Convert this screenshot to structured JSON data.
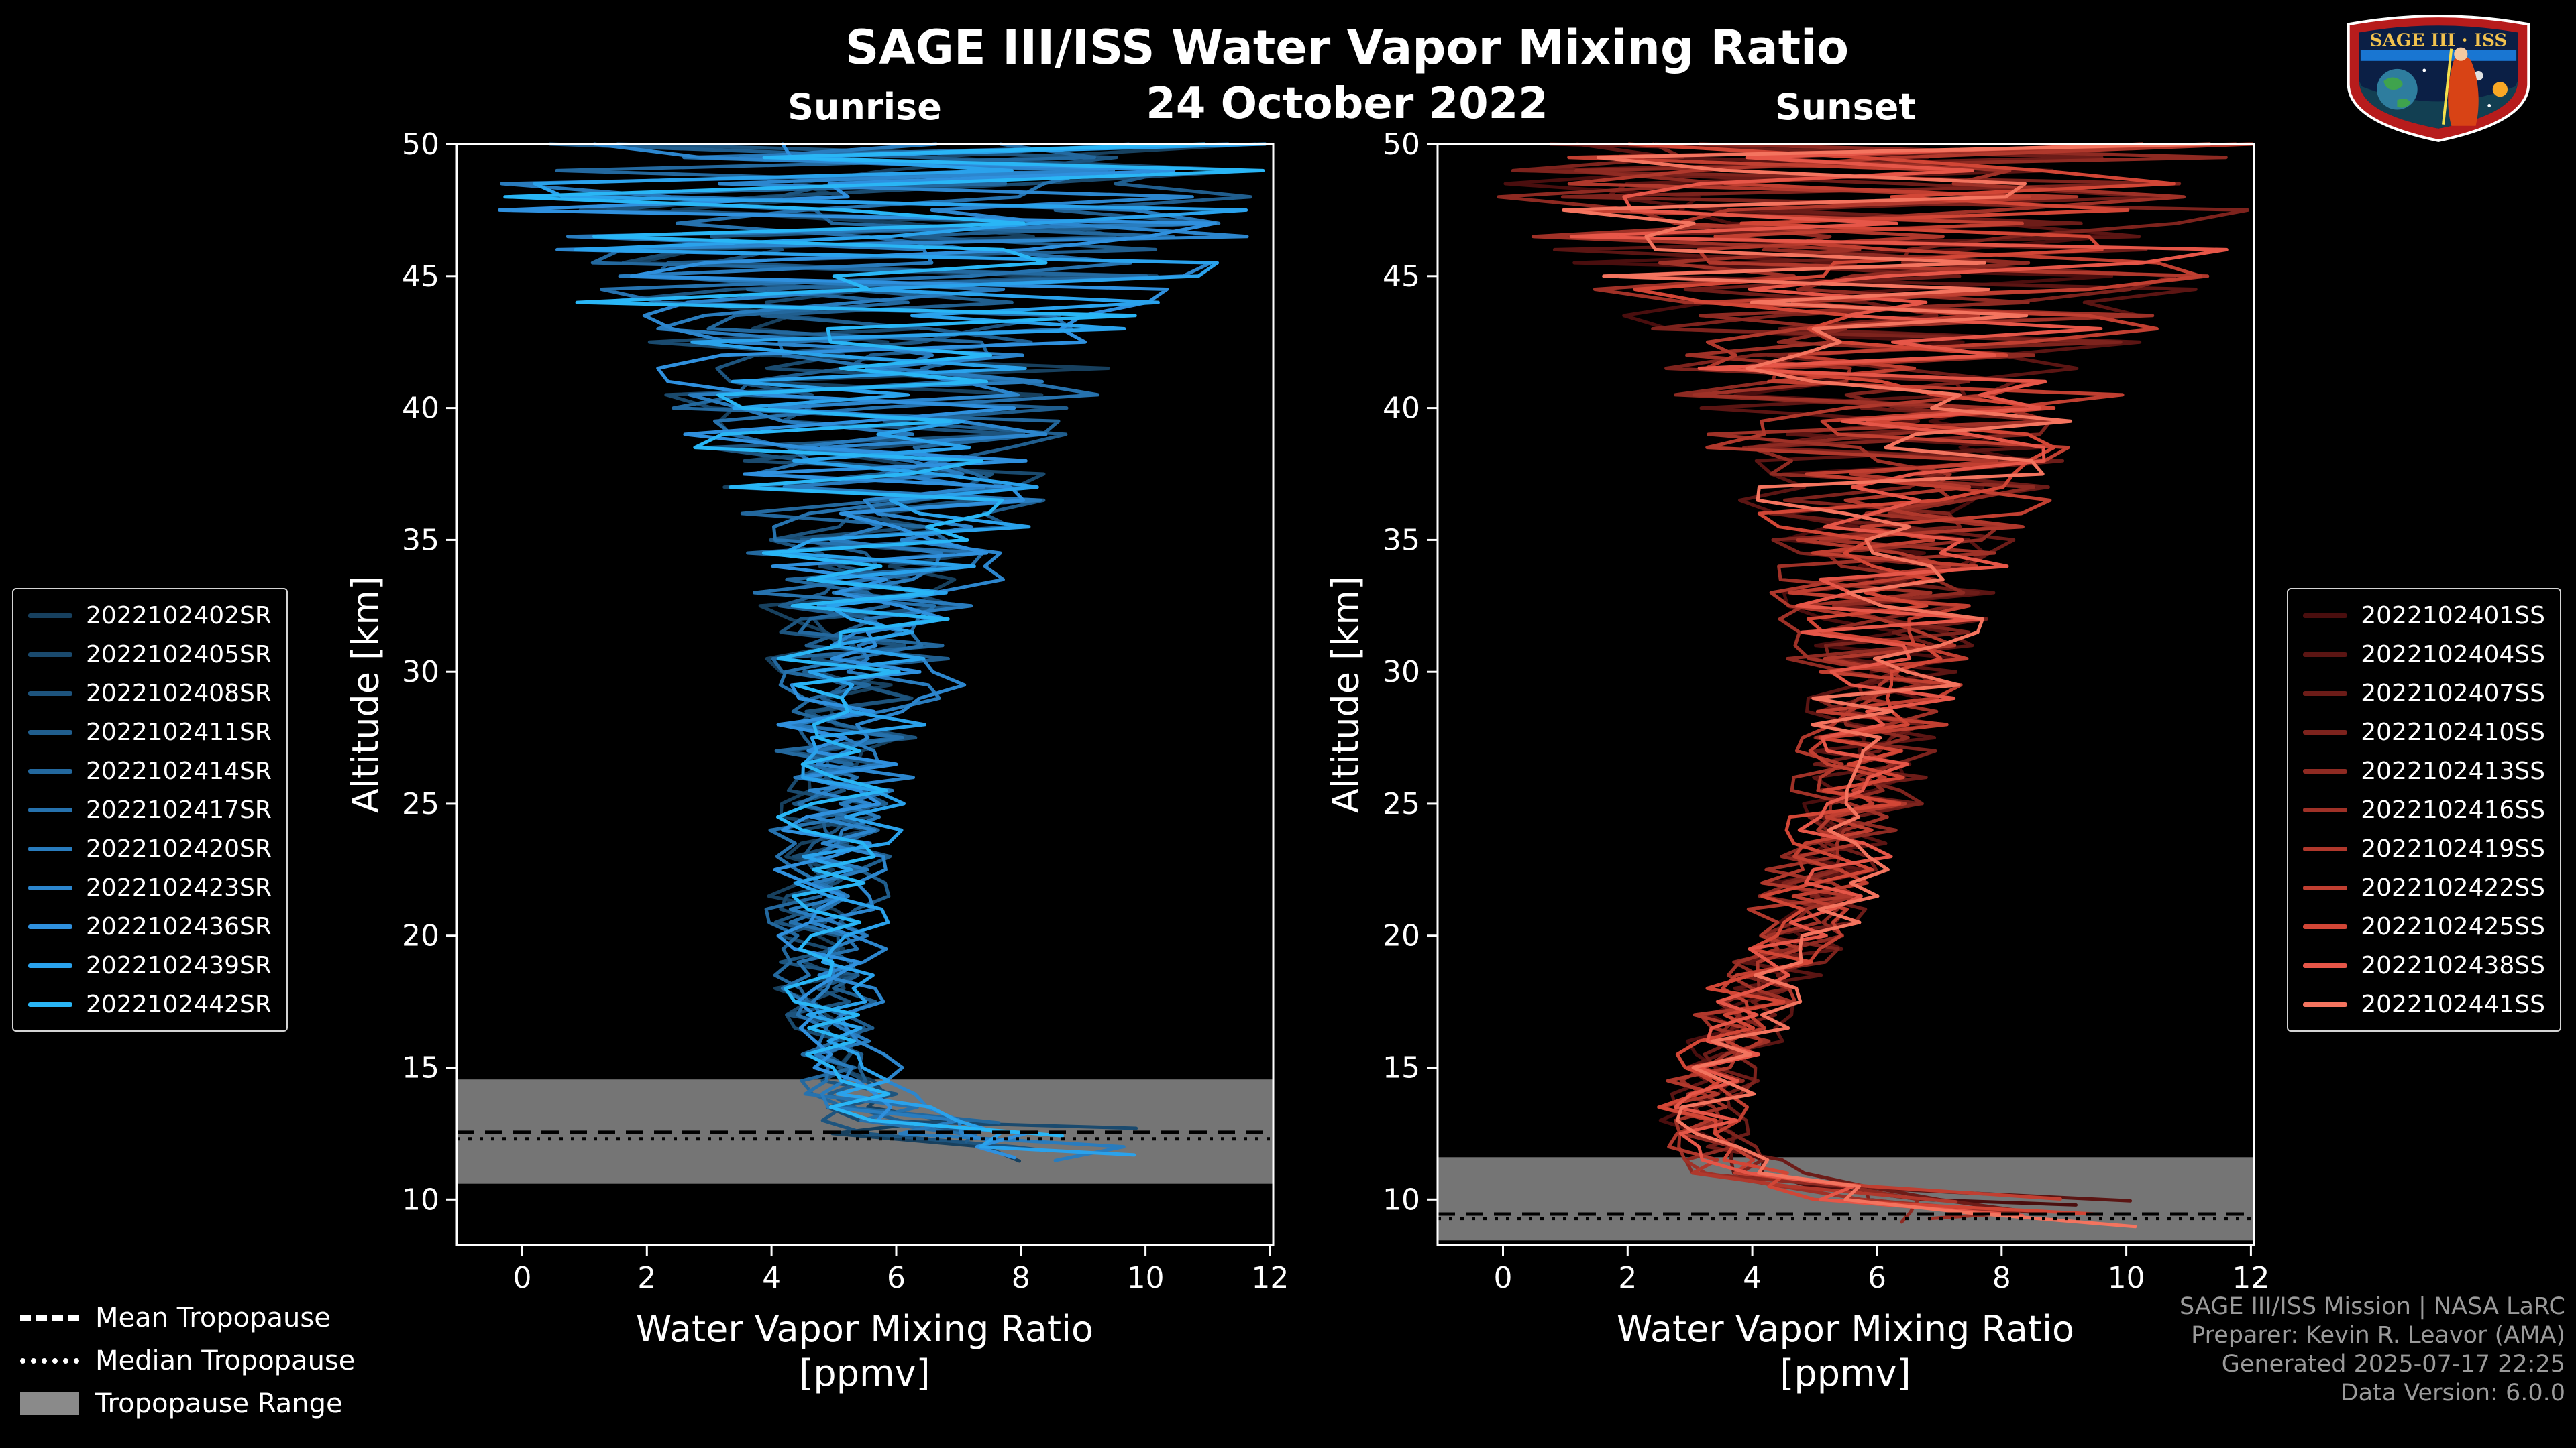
{
  "page": {
    "background": "#000000"
  },
  "header": {
    "title": "SAGE III/ISS Water Vapor Mixing Ratio",
    "date": "24 October 2022",
    "left_subtitle": "Sunrise",
    "right_subtitle": "Sunset"
  },
  "logo": {
    "title": "SAGE III · ISS"
  },
  "tropopause_legend": {
    "mean": "Mean Tropopause",
    "median": "Median Tropopause",
    "range": "Tropopause Range"
  },
  "footer": {
    "lines": [
      "SAGE III/ISS Mission | NASA LaRC",
      "Preparer: Kevin R. Leavor (AMA)",
      "Generated 2025-07-17 22:25",
      "Data Version: 6.0.0"
    ]
  },
  "chart_data": {
    "type": "line",
    "title": "SAGE III/ISS Water Vapor Mixing Ratio",
    "date": "24 October 2022",
    "xlabel": "Water Vapor Mixing Ratio",
    "xlabel_unit": "[ppmv]",
    "ylabel": "Altitude [km]",
    "xlim": [
      -1.05,
      12.05
    ],
    "ylim": [
      8.28,
      50
    ],
    "xticks": [
      0,
      2,
      4,
      6,
      8,
      10,
      12
    ],
    "yticks": [
      10,
      15,
      20,
      25,
      30,
      35,
      40,
      45,
      50
    ],
    "frame_color": "#ffffff",
    "tropopause_band_color": "#8a8a8a",
    "panels": [
      {
        "title": "Sunrise",
        "series": [
          {
            "name": "2022102402SR",
            "color": "#17405e"
          },
          {
            "name": "2022102405SR",
            "color": "#1a4a6e"
          },
          {
            "name": "2022102408SR",
            "color": "#1d547e"
          },
          {
            "name": "2022102411SR",
            "color": "#205e8e"
          },
          {
            "name": "2022102414SR",
            "color": "#23689e"
          },
          {
            "name": "2022102417SR",
            "color": "#2672ae"
          },
          {
            "name": "2022102420SR",
            "color": "#297cbe"
          },
          {
            "name": "2022102423SR",
            "color": "#2c86ce"
          },
          {
            "name": "2022102436SR",
            "color": "#2f90de"
          },
          {
            "name": "2022102439SR",
            "color": "#2aa2ec"
          },
          {
            "name": "2022102442SR",
            "color": "#29b6f6"
          }
        ],
        "mean_alt": [
          50,
          45,
          40,
          35,
          30,
          25,
          20,
          18,
          16,
          15,
          14,
          13.5,
          13,
          12.5,
          12,
          11.5
        ],
        "mean_val": [
          5.9,
          5.9,
          5.9,
          5.8,
          5.6,
          5.2,
          5.0,
          4.95,
          5.1,
          5.3,
          5.5,
          5.8,
          6.3,
          7.0,
          7.7,
          8.2
        ],
        "noise_alt": [
          50,
          48,
          46,
          44,
          42,
          40,
          38,
          36,
          34,
          32,
          30,
          28,
          26,
          24,
          22,
          20,
          18,
          16,
          15,
          14,
          13.5,
          13,
          12.5,
          12,
          11.5
        ],
        "noise_amp": [
          6.5,
          6.2,
          5.6,
          4.8,
          4.2,
          3.5,
          2.9,
          2.4,
          1.9,
          1.6,
          1.35,
          1.15,
          1.0,
          0.92,
          0.85,
          0.8,
          0.72,
          0.6,
          0.55,
          0.7,
          0.9,
          1.3,
          1.7,
          2.0,
          2.2
        ],
        "end_alt_range": [
          11.5,
          13.2
        ],
        "end_spike": [
          6.5,
          11.0
        ],
        "tropopause": {
          "mean_km": 12.55,
          "median_km": 12.3,
          "range_km": [
            10.6,
            14.55
          ]
        }
      },
      {
        "title": "Sunset",
        "series": [
          {
            "name": "2022102401SS",
            "color": "#4a0e0e"
          },
          {
            "name": "2022102404SS",
            "color": "#5b1513"
          },
          {
            "name": "2022102407SS",
            "color": "#6c1c18"
          },
          {
            "name": "2022102410SS",
            "color": "#7d231d"
          },
          {
            "name": "2022102413SS",
            "color": "#8e2a22"
          },
          {
            "name": "2022102416SS",
            "color": "#9f3127"
          },
          {
            "name": "2022102419SS",
            "color": "#b0382c"
          },
          {
            "name": "2022102422SS",
            "color": "#c13f31"
          },
          {
            "name": "2022102425SS",
            "color": "#d24636"
          },
          {
            "name": "2022102438SS",
            "color": "#e65648"
          },
          {
            "name": "2022102441SS",
            "color": "#f4745f"
          }
        ],
        "mean_alt": [
          50,
          45,
          40,
          35,
          30,
          25,
          22,
          20,
          18,
          16,
          14,
          13,
          12,
          11,
          10.5,
          10,
          9.5,
          9
        ],
        "mean_val": [
          6.3,
          6.3,
          6.3,
          6.3,
          6.1,
          5.7,
          5.2,
          4.8,
          4.2,
          3.8,
          3.3,
          3.2,
          3.4,
          4.0,
          4.8,
          5.6,
          6.6,
          7.2
        ],
        "noise_alt": [
          50,
          48,
          46,
          44,
          42,
          40,
          38,
          36,
          34,
          32,
          30,
          28,
          26,
          24,
          22,
          20,
          18,
          16,
          15,
          14,
          13,
          12,
          11,
          10.5,
          10,
          9.5,
          9
        ],
        "noise_amp": [
          6.5,
          6.2,
          5.6,
          4.8,
          4.2,
          3.5,
          2.9,
          2.4,
          1.9,
          1.6,
          1.35,
          1.15,
          1.0,
          0.95,
          0.9,
          0.85,
          0.8,
          0.75,
          0.7,
          0.65,
          0.6,
          0.6,
          0.8,
          1.1,
          1.5,
          1.9,
          2.1
        ],
        "end_alt_range": [
          9.1,
          10.6
        ],
        "end_spike": [
          6.0,
          10.2
        ],
        "tropopause": {
          "mean_km": 9.45,
          "median_km": 9.28,
          "range_km": [
            8.45,
            11.6
          ]
        }
      }
    ]
  }
}
